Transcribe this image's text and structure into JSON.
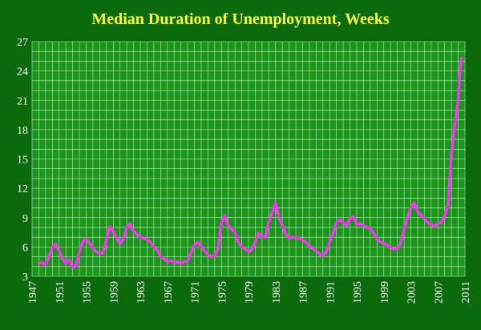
{
  "colors": {
    "background": "#0b6b0b",
    "plot_background": "#1a961a",
    "grid": "#c8e6c8",
    "title": "#ffff33",
    "line": "#ff33ff",
    "tick_text": "#ffffff"
  },
  "chart_data": {
    "type": "line",
    "title": "Median Duration of Unemployment, Weeks",
    "xlabel": "",
    "ylabel": "",
    "xlim": [
      1947,
      2011
    ],
    "ylim": [
      3,
      27
    ],
    "x_ticks": [
      "1947",
      "1951",
      "1955",
      "1959",
      "1963",
      "1967",
      "1971",
      "1975",
      "1979",
      "1983",
      "1987",
      "1991",
      "1995",
      "1999",
      "2003",
      "2007",
      "2011"
    ],
    "y_ticks": [
      "3",
      "6",
      "9",
      "12",
      "15",
      "18",
      "21",
      "24",
      "27"
    ],
    "grid": true,
    "legend": "none",
    "series": [
      {
        "x": [
          1948.0,
          1948.5,
          1949.0,
          1949.5,
          1950.0,
          1950.5,
          1951.0,
          1951.5,
          1952.0,
          1952.5,
          1953.0,
          1953.5,
          1954.0,
          1954.5,
          1955.0,
          1955.5,
          1956.0,
          1956.5,
          1957.0,
          1957.5,
          1958.0,
          1958.5,
          1959.0,
          1959.5,
          1960.0,
          1960.5,
          1961.0,
          1961.5,
          1962.0,
          1962.5,
          1963.0,
          1963.5,
          1964.0,
          1964.5,
          1965.0,
          1965.5,
          1966.0,
          1966.5,
          1967.0,
          1967.5,
          1968.0,
          1968.5,
          1969.0,
          1969.5,
          1970.0,
          1970.5,
          1971.0,
          1971.5,
          1972.0,
          1972.5,
          1973.0,
          1973.5,
          1974.0,
          1974.5,
          1975.0,
          1975.5,
          1976.0,
          1976.5,
          1977.0,
          1977.5,
          1978.0,
          1978.5,
          1979.0,
          1979.5,
          1980.0,
          1980.5,
          1981.0,
          1981.5,
          1982.0,
          1982.5,
          1983.0,
          1983.5,
          1984.0,
          1984.5,
          1985.0,
          1985.5,
          1986.0,
          1986.5,
          1987.0,
          1987.5,
          1988.0,
          1988.5,
          1989.0,
          1989.5,
          1990.0,
          1990.5,
          1991.0,
          1991.5,
          1992.0,
          1992.5,
          1993.0,
          1993.5,
          1994.0,
          1994.5,
          1995.0,
          1995.5,
          1996.0,
          1996.5,
          1997.0,
          1997.5,
          1998.0,
          1998.5,
          1999.0,
          1999.5,
          2000.0,
          2000.5,
          2001.0,
          2001.5,
          2002.0,
          2002.5,
          2003.0,
          2003.5,
          2004.0,
          2004.5,
          2005.0,
          2005.5,
          2006.0,
          2006.5,
          2007.0,
          2007.5,
          2008.0,
          2008.5,
          2009.0,
          2009.5,
          2010.0,
          2010.25,
          2010.5
        ],
        "values": [
          4.3,
          4.4,
          4.2,
          5.0,
          6.0,
          6.3,
          5.6,
          4.8,
          4.3,
          4.7,
          3.9,
          4.1,
          5.5,
          6.6,
          6.8,
          6.4,
          5.9,
          5.5,
          5.3,
          5.4,
          6.8,
          8.1,
          7.6,
          6.9,
          6.3,
          6.8,
          8.0,
          8.4,
          7.6,
          7.3,
          7.0,
          6.9,
          6.8,
          6.5,
          6.0,
          5.7,
          5.0,
          4.8,
          4.5,
          4.6,
          4.4,
          4.5,
          4.3,
          4.5,
          4.6,
          5.4,
          6.2,
          6.5,
          6.1,
          5.6,
          5.2,
          5.0,
          5.1,
          5.8,
          8.5,
          9.2,
          8.2,
          7.8,
          7.5,
          6.5,
          6.0,
          5.8,
          5.5,
          5.7,
          6.5,
          7.4,
          7.1,
          7.0,
          8.6,
          9.5,
          10.5,
          9.0,
          8.2,
          7.3,
          6.9,
          7.0,
          7.0,
          6.9,
          6.7,
          6.5,
          6.1,
          5.8,
          5.6,
          5.3,
          5.1,
          5.5,
          6.5,
          7.4,
          8.5,
          8.8,
          8.5,
          8.2,
          8.9,
          9.1,
          8.3,
          8.4,
          8.2,
          8.0,
          7.9,
          7.4,
          6.8,
          6.5,
          6.4,
          6.2,
          5.9,
          5.8,
          5.8,
          6.4,
          7.8,
          9.0,
          10.0,
          10.5,
          9.6,
          9.3,
          8.9,
          8.5,
          8.3,
          8.1,
          8.4,
          8.5,
          9.2,
          10.3,
          15.5,
          18.5,
          21.0,
          24.0,
          25.3
        ]
      }
    ]
  }
}
